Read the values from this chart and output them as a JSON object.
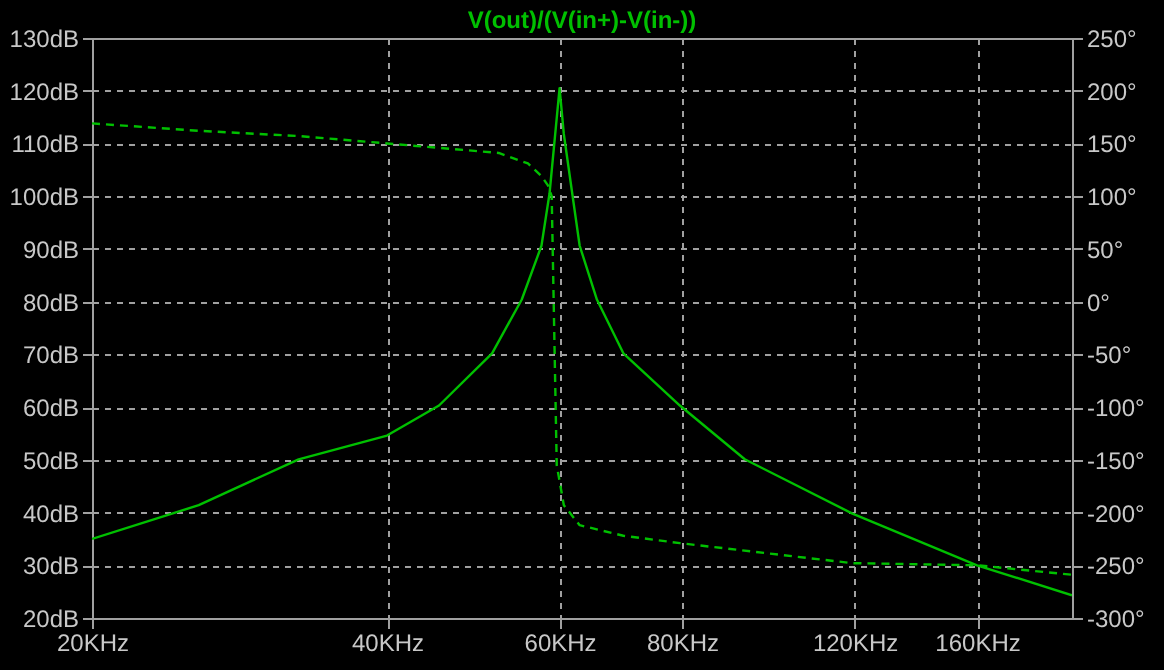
{
  "chart_data": {
    "type": "line",
    "title": "V(out)/(V(in+)-V(in-))",
    "log": "x",
    "grid": true,
    "xlim": [
      20,
      200
    ],
    "xticks": [
      {
        "value": 20,
        "label": "20KHz"
      },
      {
        "value": 40,
        "label": "40KHz"
      },
      {
        "value": 60,
        "label": "60KHz"
      },
      {
        "value": 80,
        "label": "80KHz"
      },
      {
        "value": 120,
        "label": "120KHz"
      },
      {
        "value": 160,
        "label": "160KHz"
      }
    ],
    "ylim": [
      20,
      130
    ],
    "yticks": [
      {
        "value": 20,
        "label": "20dB"
      },
      {
        "value": 30,
        "label": "30dB"
      },
      {
        "value": 40,
        "label": "40dB"
      },
      {
        "value": 50,
        "label": "50dB"
      },
      {
        "value": 60,
        "label": "60dB"
      },
      {
        "value": 70,
        "label": "70dB"
      },
      {
        "value": 80,
        "label": "80dB"
      },
      {
        "value": 90,
        "label": "90dB"
      },
      {
        "value": 100,
        "label": "100dB"
      },
      {
        "value": 110,
        "label": "110dB"
      },
      {
        "value": 120,
        "label": "120dB"
      },
      {
        "value": 130,
        "label": "130dB"
      }
    ],
    "y2lim": [
      -300,
      250
    ],
    "y2ticks": [
      {
        "value": -300,
        "label": "-300°"
      },
      {
        "value": -250,
        "label": "-250°"
      },
      {
        "value": -200,
        "label": "-200°"
      },
      {
        "value": -150,
        "label": "-150°"
      },
      {
        "value": -100,
        "label": "-100°"
      },
      {
        "value": -50,
        "label": "-50°"
      },
      {
        "value": 0,
        "label": "0°"
      },
      {
        "value": 50,
        "label": "50°"
      },
      {
        "value": 100,
        "label": "100°"
      },
      {
        "value": 150,
        "label": "150°"
      },
      {
        "value": 200,
        "label": "200°"
      },
      {
        "value": 250,
        "label": "250°"
      }
    ],
    "series": [
      {
        "color": "#00c000",
        "line_style": "solid",
        "axis": "y",
        "x": [
          20,
          25.7,
          32.5,
          40,
          45.2,
          51.2,
          54.9,
          57.5,
          58.6,
          60,
          60.6,
          62.9,
          65.5,
          69.7,
          79.6,
          92.7,
          119.4,
          160,
          200
        ],
        "values": [
          35,
          41.4,
          50.1,
          54.6,
          60.3,
          70.2,
          80.4,
          90.6,
          100.5,
          120.5,
          111.8,
          90.6,
          80.4,
          70.2,
          60.3,
          50.1,
          39.8,
          30,
          24.3
        ]
      },
      {
        "color": "#00c000",
        "line_style": "dashed",
        "axis": "y2",
        "x": [
          20,
          25.7,
          32.5,
          40,
          52,
          55.7,
          57.5,
          58.4,
          58.9,
          59.6,
          60.6,
          62.9,
          69.7,
          79.6,
          119.4,
          160,
          200
        ],
        "values": [
          169,
          162,
          157,
          150,
          141,
          131,
          119,
          110,
          100,
          -155,
          -193,
          -212,
          -222,
          -229,
          -248,
          -250,
          -259
        ]
      }
    ]
  }
}
